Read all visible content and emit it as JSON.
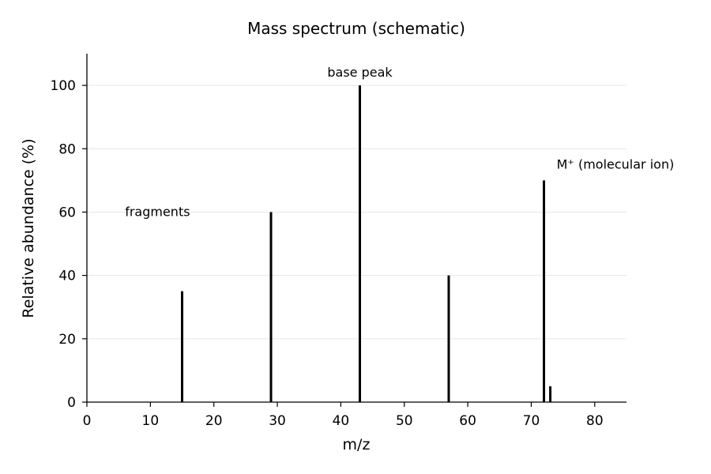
{
  "chart_data": {
    "type": "bar",
    "title": "Mass spectrum (schematic)",
    "xlabel": "m/z",
    "ylabel": "Relative abundance (%)",
    "xlim": [
      0,
      85
    ],
    "ylim": [
      0,
      110
    ],
    "xticks": [
      0,
      10,
      20,
      30,
      40,
      50,
      60,
      70,
      80
    ],
    "yticks": [
      0,
      20,
      40,
      60,
      80,
      100
    ],
    "grid": "horizontal",
    "x": [
      15,
      29,
      43,
      57,
      72,
      73
    ],
    "values": [
      35,
      60,
      100,
      40,
      70,
      5
    ],
    "annotations": [
      {
        "text": "base peak",
        "x": 43,
        "y": 104
      },
      {
        "text": "M⁺ (molecular ion)",
        "x": 74,
        "y": 75
      },
      {
        "text": "fragments",
        "x": 6,
        "y": 60
      }
    ],
    "colors": {
      "bars": "#000000",
      "grid": "#e6e6e6"
    }
  }
}
